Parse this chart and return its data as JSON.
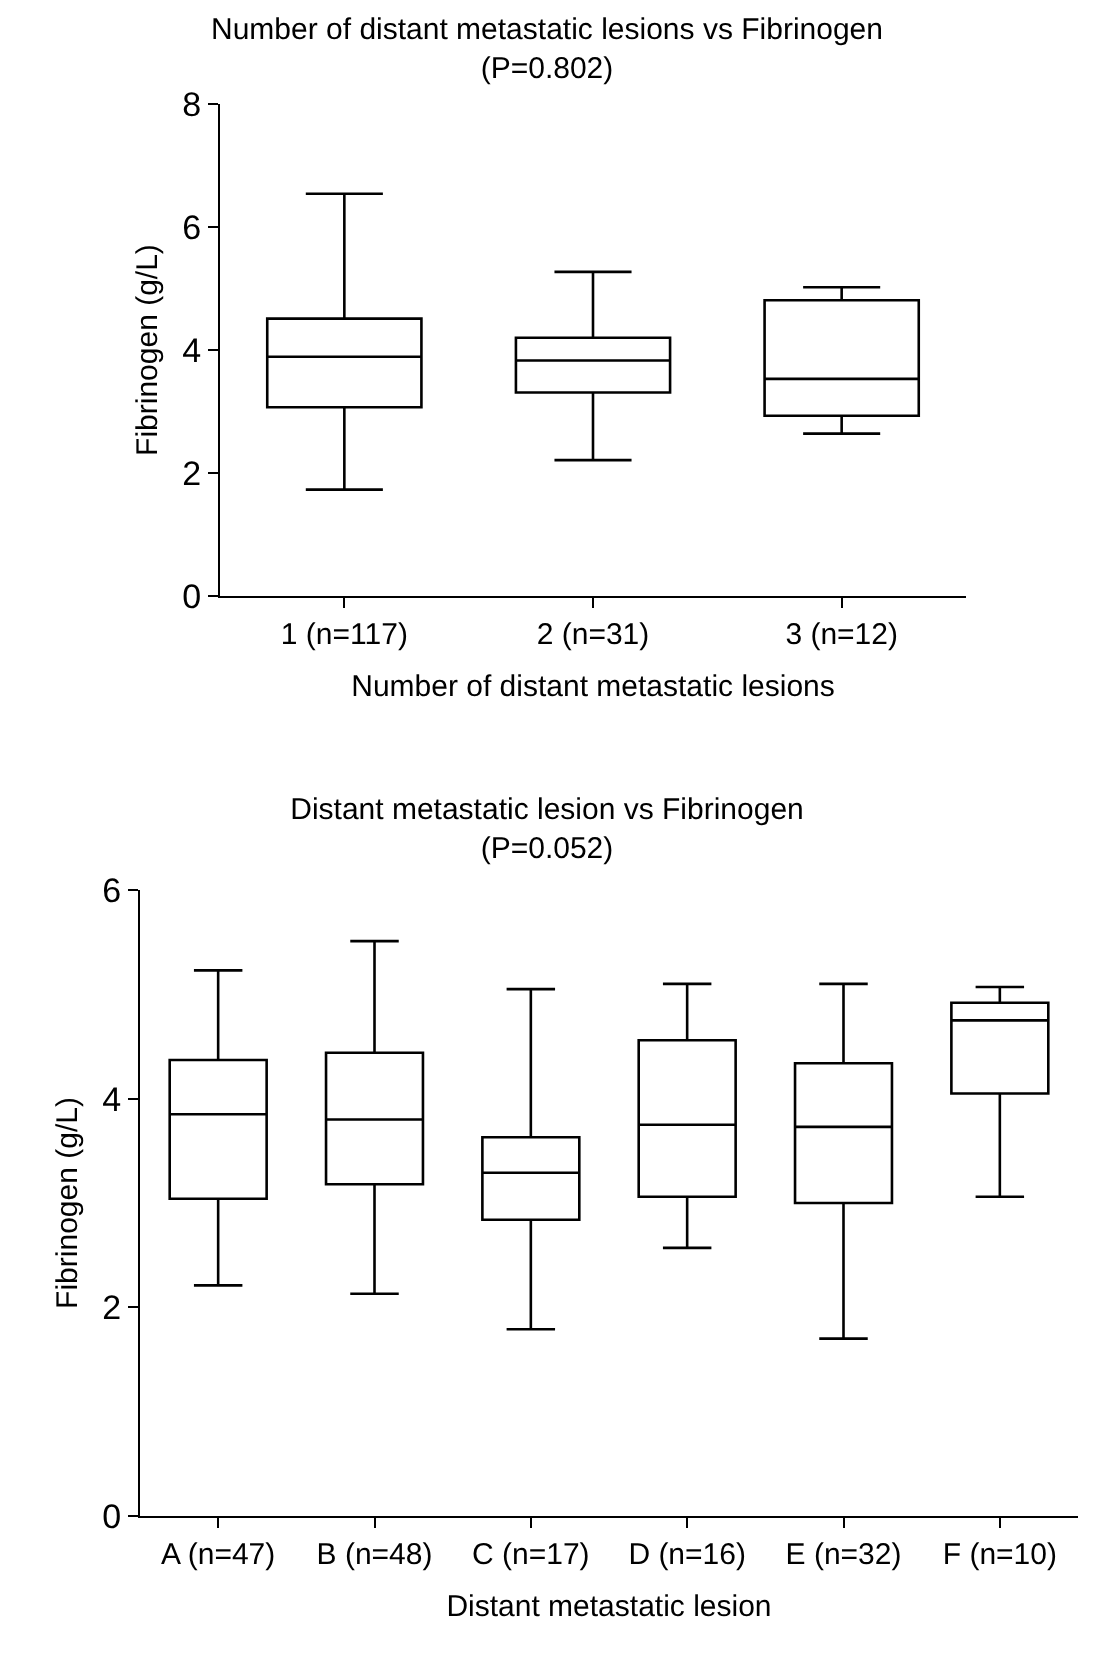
{
  "chart_data": [
    {
      "type": "box",
      "title": "Number of distant metastatic lesions vs Fibrinogen",
      "subtitle": "(P=0.802)",
      "xlabel": "Number of distant metastatic lesions",
      "ylabel": "Fibrinogen (g/L)",
      "categories": [
        "1 (n=117)",
        "2 (n=31)",
        "3 (n=12)"
      ],
      "ylim": [
        0,
        8
      ],
      "yticks": [
        0,
        2,
        4,
        6,
        8
      ],
      "grid": false,
      "boxes": [
        {
          "low": 1.73,
          "q1": 3.07,
          "median": 3.89,
          "q3": 4.51,
          "high": 6.54
        },
        {
          "low": 2.21,
          "q1": 3.31,
          "median": 3.83,
          "q3": 4.2,
          "high": 5.27
        },
        {
          "low": 2.64,
          "q1": 2.93,
          "median": 3.53,
          "q3": 4.81,
          "high": 5.02
        }
      ]
    },
    {
      "type": "box",
      "title": "Distant metastatic lesion vs Fibrinogen",
      "subtitle": "(P=0.052)",
      "xlabel": "Distant metastatic lesion",
      "ylabel": "Fibrinogen (g/L)",
      "categories": [
        "A (n=47)",
        "B (n=48)",
        "C (n=17)",
        "D (n=16)",
        "E (n=32)",
        "F (n=10)"
      ],
      "ylim": [
        0,
        6
      ],
      "yticks": [
        0,
        2,
        4,
        6
      ],
      "grid": false,
      "boxes": [
        {
          "low": 2.21,
          "q1": 3.04,
          "median": 3.85,
          "q3": 4.37,
          "high": 5.23
        },
        {
          "low": 2.13,
          "q1": 3.18,
          "median": 3.8,
          "q3": 4.44,
          "high": 5.51
        },
        {
          "low": 1.79,
          "q1": 2.84,
          "median": 3.29,
          "q3": 3.63,
          "high": 5.05
        },
        {
          "low": 2.57,
          "q1": 3.06,
          "median": 3.75,
          "q3": 4.56,
          "high": 5.1
        },
        {
          "low": 1.7,
          "q1": 3.0,
          "median": 3.73,
          "q3": 4.34,
          "high": 5.1
        },
        {
          "low": 3.06,
          "q1": 4.05,
          "median": 4.75,
          "q3": 4.92,
          "high": 5.07
        }
      ]
    }
  ]
}
